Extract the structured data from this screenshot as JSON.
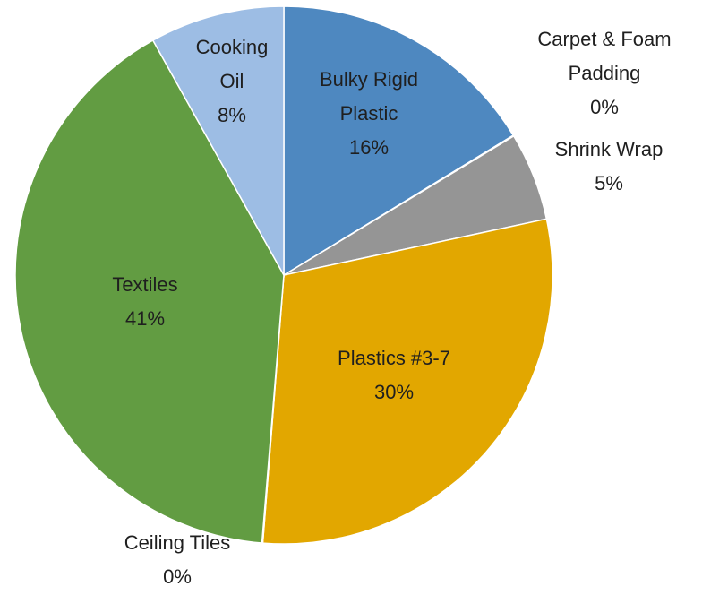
{
  "chart_data": {
    "type": "pie",
    "title": "",
    "start_angle_deg": 90,
    "direction": "clockwise",
    "legend": "none",
    "slices": [
      {
        "key": "bulky",
        "label_lines": [
          "Bulky Rigid",
          "Plastic"
        ],
        "pct_label": "16%",
        "value": 16.3,
        "color": "#4e88c0"
      },
      {
        "key": "carpet",
        "label_lines": [
          "Carpet & Foam",
          "Padding"
        ],
        "pct_label": "0%",
        "value": 0.05,
        "color": "#9c4a21"
      },
      {
        "key": "shrink",
        "label_lines": [
          "Shrink Wrap"
        ],
        "pct_label": "5%",
        "value": 5.3,
        "color": "#959595"
      },
      {
        "key": "plastics",
        "label_lines": [
          "Plastics #3-7"
        ],
        "pct_label": "30%",
        "value": 29.6,
        "color": "#e2a700"
      },
      {
        "key": "ceiling",
        "label_lines": [
          "Ceiling Tiles"
        ],
        "pct_label": "0%",
        "value": 0.05,
        "color": "#3f67a6"
      },
      {
        "key": "textiles",
        "label_lines": [
          "Textiles"
        ],
        "pct_label": "41%",
        "value": 40.6,
        "color": "#629c42"
      },
      {
        "key": "cooking",
        "label_lines": [
          "Cooking",
          "Oil"
        ],
        "pct_label": "8%",
        "value": 8.1,
        "color": "#9dbde4"
      }
    ]
  }
}
